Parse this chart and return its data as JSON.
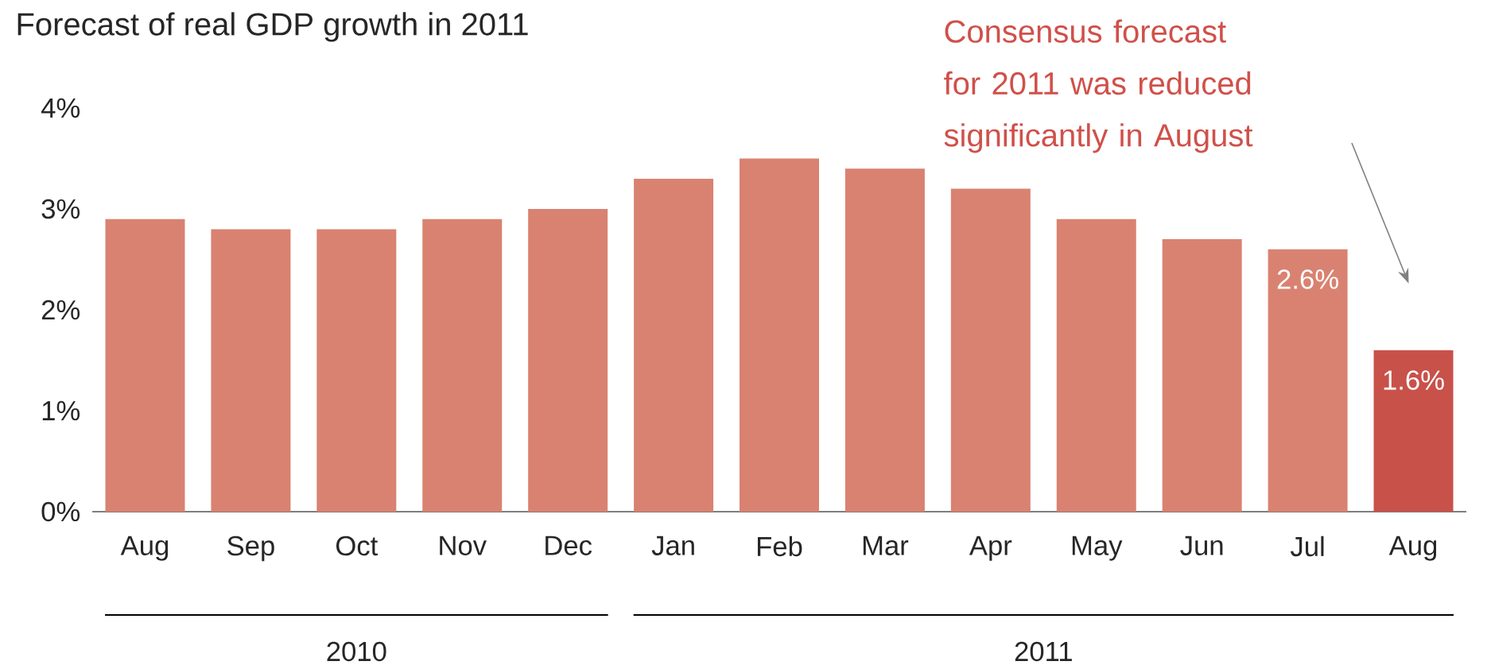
{
  "chart_data": {
    "type": "bar",
    "title": "Forecast of real GDP growth in 2011",
    "categories": [
      "Aug",
      "Sep",
      "Oct",
      "Nov",
      "Dec",
      "Jan",
      "Feb",
      "Mar",
      "Apr",
      "May",
      "Jun",
      "Jul",
      "Aug"
    ],
    "values": [
      2.9,
      2.8,
      2.8,
      2.9,
      3.0,
      3.3,
      3.5,
      3.4,
      3.2,
      2.9,
      2.7,
      2.6,
      1.6
    ],
    "colors": [
      "#d98271",
      "#d98271",
      "#d98271",
      "#d98271",
      "#d98271",
      "#d98271",
      "#d98271",
      "#d98271",
      "#d98271",
      "#d98271",
      "#d98271",
      "#d98271",
      "#c8514a"
    ],
    "value_labels": [
      null,
      null,
      null,
      null,
      null,
      null,
      null,
      null,
      null,
      null,
      null,
      "2.6%",
      "1.6%"
    ],
    "ylim": [
      0,
      4
    ],
    "yticks": [
      {
        "value": 0,
        "label": "0%"
      },
      {
        "value": 1,
        "label": "1%"
      },
      {
        "value": 2,
        "label": "2%"
      },
      {
        "value": 3,
        "label": "3%"
      },
      {
        "value": 4,
        "label": "4%"
      }
    ],
    "annotations": [
      "Consensus forecast for 2011 was reduced significantly in August",
      "2010",
      "2011"
    ],
    "grid": false
  }
}
